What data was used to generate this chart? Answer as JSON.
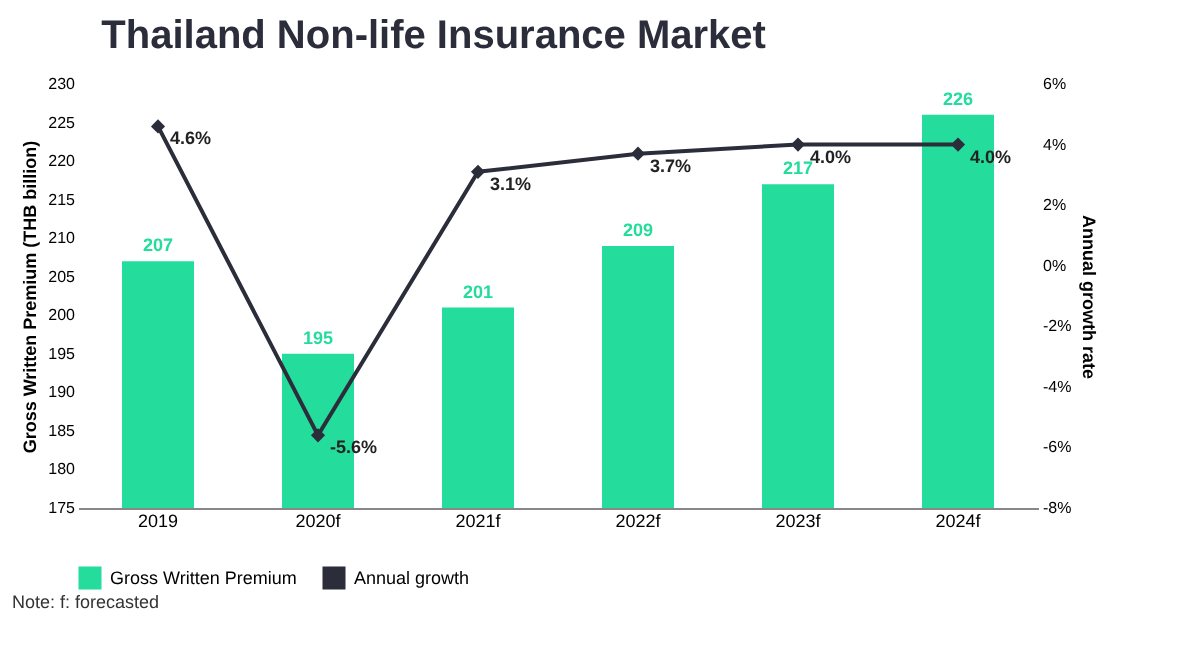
{
  "chart_data": {
    "type": "bar",
    "title": "Thailand Non-life Insurance Market",
    "ylabel": "Gross Written Premium (THB billion)",
    "y2label": "Annual growth rate",
    "categories": [
      "2019",
      "2020f",
      "2021f",
      "2022f",
      "2023f",
      "2024f"
    ],
    "series": [
      {
        "name": "Gross Written Premium",
        "color": "#24dc9c",
        "values": [
          207,
          195,
          201,
          209,
          217,
          226
        ],
        "value_labels": [
          "207",
          "195",
          "201",
          "209",
          "217",
          "226"
        ]
      },
      {
        "name": "Annual growth",
        "type": "line",
        "axis": "y2",
        "color": "#2b2d3a",
        "marker": "diamond",
        "line_style": "solid",
        "values": [
          4.6,
          -5.6,
          3.1,
          3.7,
          4.0,
          4.0
        ],
        "value_labels": [
          "4.6%",
          "-5.6%",
          "3.1%",
          "3.7%",
          "4.0%",
          "4.0%"
        ]
      }
    ],
    "ylim": [
      175,
      230
    ],
    "yticks": [
      175,
      180,
      185,
      190,
      195,
      200,
      205,
      210,
      215,
      220,
      225,
      230
    ],
    "y2lim": [
      -8,
      6
    ],
    "y2ticks": [
      {
        "value": -8,
        "label": "-8%"
      },
      {
        "value": -6,
        "label": "-6%"
      },
      {
        "value": -4,
        "label": "-4%"
      },
      {
        "value": -2,
        "label": "-2%"
      },
      {
        "value": 0,
        "label": "0%"
      },
      {
        "value": 2,
        "label": "2%"
      },
      {
        "value": 4,
        "label": "4%"
      },
      {
        "value": 6,
        "label": "6%"
      }
    ],
    "legend": "bottom",
    "annotations": [
      "Note: f: forecasted"
    ]
  }
}
